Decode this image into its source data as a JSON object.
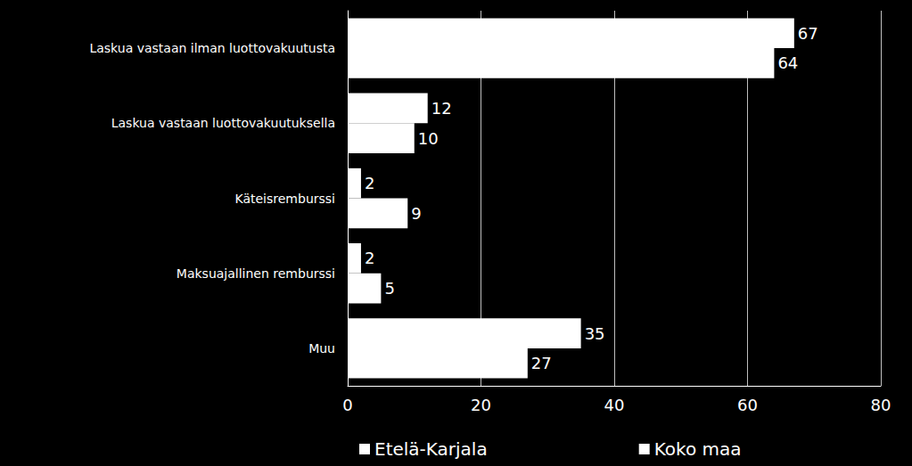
{
  "chart_data": {
    "type": "bar",
    "orientation": "horizontal",
    "categories": [
      "Laskua vastaan ilman luottovakuutusta",
      "Laskua vastaan luottovakuutuksella",
      "Käteisremburssi",
      "Maksuajallinen remburssi",
      "Muu"
    ],
    "series": [
      {
        "name": "Etelä-Karjala",
        "color": "#ffffff",
        "values": [
          67,
          12,
          2,
          2,
          35
        ]
      },
      {
        "name": "Koko maa",
        "color": "#ffffff",
        "values": [
          64,
          10,
          9,
          5,
          27
        ]
      }
    ],
    "xlim": [
      0,
      80
    ],
    "xticks": [
      0,
      20,
      40,
      60,
      80
    ],
    "grid": true,
    "data_labels": true,
    "legend": "bottom"
  }
}
